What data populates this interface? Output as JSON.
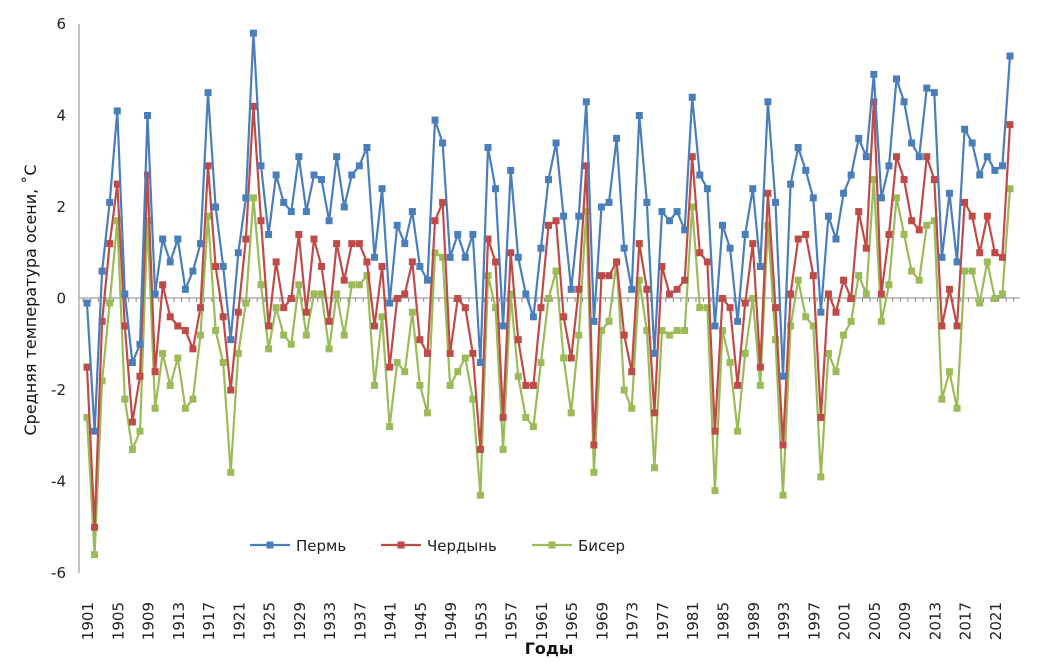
{
  "chart_data": {
    "type": "line",
    "title": "",
    "xlabel": "Годы",
    "ylabel": "Средняя температура осени, ˚С",
    "ylim": [
      -6,
      6
    ],
    "yticks": [
      -6,
      -4,
      -2,
      0,
      2,
      4,
      6
    ],
    "x": [
      1901,
      1902,
      1903,
      1904,
      1905,
      1906,
      1907,
      1908,
      1909,
      1910,
      1911,
      1912,
      1913,
      1914,
      1915,
      1916,
      1917,
      1918,
      1919,
      1920,
      1921,
      1922,
      1923,
      1924,
      1925,
      1926,
      1927,
      1928,
      1929,
      1930,
      1931,
      1932,
      1933,
      1934,
      1935,
      1936,
      1937,
      1938,
      1939,
      1940,
      1941,
      1942,
      1943,
      1944,
      1945,
      1946,
      1947,
      1948,
      1949,
      1950,
      1951,
      1952,
      1953,
      1954,
      1955,
      1956,
      1957,
      1958,
      1959,
      1960,
      1961,
      1962,
      1963,
      1964,
      1965,
      1966,
      1967,
      1968,
      1969,
      1970,
      1971,
      1972,
      1973,
      1974,
      1975,
      1976,
      1977,
      1978,
      1979,
      1980,
      1981,
      1982,
      1983,
      1984,
      1985,
      1986,
      1987,
      1988,
      1989,
      1990,
      1991,
      1992,
      1993,
      1994,
      1995,
      1996,
      1997,
      1998,
      1999,
      2000,
      2001,
      2002,
      2003,
      2004,
      2005,
      2006,
      2007,
      2008,
      2009,
      2010,
      2011,
      2012,
      2013,
      2014,
      2015,
      2016,
      2017,
      2018,
      2019,
      2020,
      2021,
      2022,
      2023
    ],
    "xticks": [
      "1901",
      "1905",
      "1909",
      "1913",
      "1917",
      "1921",
      "1925",
      "1929",
      "1933",
      "1937",
      "1941",
      "1945",
      "1949",
      "1953",
      "1957",
      "1961",
      "1965",
      "1969",
      "1973",
      "1977",
      "1981",
      "1985",
      "1989",
      "1993",
      "1997",
      "2001",
      "2005",
      "2009",
      "2013",
      "2017",
      "2021"
    ],
    "series": [
      {
        "name": "Пермь",
        "color": "#4a7ebb",
        "marker": "square",
        "values": [
          -0.1,
          -2.9,
          0.6,
          2.1,
          4.1,
          0.1,
          -1.4,
          -1.0,
          4.0,
          0.1,
          1.3,
          0.8,
          1.3,
          0.2,
          0.6,
          1.2,
          4.5,
          2.0,
          0.7,
          -0.9,
          1.0,
          2.2,
          5.8,
          2.9,
          1.4,
          2.7,
          2.1,
          1.9,
          3.1,
          1.9,
          2.7,
          2.6,
          1.7,
          3.1,
          2.0,
          2.7,
          2.9,
          3.3,
          0.9,
          2.4,
          -0.1,
          1.6,
          1.2,
          1.9,
          0.7,
          0.4,
          3.9,
          3.4,
          0.9,
          1.4,
          0.9,
          1.4,
          -1.4,
          3.3,
          2.4,
          -0.6,
          2.8,
          0.9,
          0.1,
          -0.4,
          1.1,
          2.6,
          3.4,
          1.8,
          0.2,
          1.8,
          4.3,
          -0.5,
          2.0,
          2.1,
          3.5,
          1.1,
          0.2,
          4.0,
          2.1,
          -1.2,
          1.9,
          1.7,
          1.9,
          1.5,
          4.4,
          2.7,
          2.4,
          -0.6,
          1.6,
          1.1,
          -0.5,
          1.4,
          2.4,
          0.7,
          4.3,
          2.1,
          -1.7,
          2.5,
          3.3,
          2.8,
          2.2,
          -0.3,
          1.8,
          1.3,
          2.3,
          2.7,
          3.5,
          3.1,
          4.9,
          2.2,
          2.9,
          4.8,
          4.3,
          3.4,
          3.1,
          4.6,
          4.5,
          0.9,
          2.3,
          0.8,
          3.7,
          3.4,
          2.7,
          3.1,
          2.8,
          2.9,
          5.3
        ]
      },
      {
        "name": "Чердынь",
        "color": "#be4b48",
        "marker": "square",
        "values": [
          -1.5,
          -5.0,
          -0.5,
          1.2,
          2.5,
          -0.6,
          -2.7,
          -1.7,
          2.7,
          -1.6,
          0.3,
          -0.4,
          -0.6,
          -0.7,
          -1.1,
          -0.2,
          2.9,
          0.7,
          -0.4,
          -2.0,
          -0.3,
          1.3,
          4.2,
          1.7,
          -0.6,
          0.8,
          -0.2,
          0.0,
          1.4,
          -0.3,
          1.3,
          0.7,
          -0.5,
          1.2,
          0.4,
          1.2,
          1.2,
          0.8,
          -0.6,
          0.7,
          -1.5,
          0.0,
          0.1,
          0.8,
          -0.9,
          -1.2,
          1.7,
          2.1,
          -1.2,
          0.0,
          -0.2,
          -1.2,
          -3.3,
          1.3,
          0.8,
          -2.6,
          1.0,
          -0.9,
          -1.9,
          -1.9,
          -0.2,
          1.6,
          1.7,
          -0.4,
          -1.3,
          0.2,
          2.9,
          -3.2,
          0.5,
          0.5,
          0.8,
          -0.8,
          -1.6,
          1.2,
          0.2,
          -2.5,
          0.7,
          0.1,
          0.2,
          0.4,
          3.1,
          1.0,
          0.8,
          -2.9,
          0.0,
          -0.2,
          -1.9,
          -0.1,
          1.2,
          -1.5,
          2.3,
          -0.2,
          -3.2,
          0.1,
          1.3,
          1.4,
          0.5,
          -2.6,
          0.1,
          -0.3,
          0.4,
          0.0,
          1.9,
          1.1,
          4.3,
          0.1,
          1.4,
          3.1,
          2.6,
          1.7,
          1.5,
          3.1,
          2.6,
          -0.6,
          0.2,
          -0.6,
          2.1,
          1.8,
          1.0,
          1.8,
          1.0,
          0.9,
          3.8
        ]
      },
      {
        "name": "Бисер",
        "color": "#9bbb59",
        "marker": "square",
        "values": [
          -2.6,
          -5.6,
          -1.8,
          -0.1,
          1.7,
          -2.2,
          -3.3,
          -2.9,
          1.7,
          -2.4,
          -1.2,
          -1.9,
          -1.3,
          -2.4,
          -2.2,
          -0.8,
          1.8,
          -0.7,
          -1.4,
          -3.8,
          -1.2,
          -0.1,
          2.2,
          0.3,
          -1.1,
          -0.2,
          -0.8,
          -1.0,
          0.3,
          -0.8,
          0.1,
          0.1,
          -1.1,
          0.1,
          -0.8,
          0.3,
          0.3,
          0.5,
          -1.9,
          -0.4,
          -2.8,
          -1.4,
          -1.6,
          -0.3,
          -1.9,
          -2.5,
          1.0,
          0.9,
          -1.9,
          -1.6,
          -1.3,
          -2.2,
          -4.3,
          0.5,
          -0.2,
          -3.3,
          0.1,
          -1.7,
          -2.6,
          -2.8,
          -1.4,
          0.0,
          0.6,
          -1.3,
          -2.5,
          -0.8,
          1.9,
          -3.8,
          -0.7,
          -0.5,
          0.8,
          -2.0,
          -2.4,
          0.4,
          -0.7,
          -3.7,
          -0.7,
          -0.8,
          -0.7,
          -0.7,
          2.0,
          -0.2,
          -0.2,
          -4.2,
          -0.7,
          -1.4,
          -2.9,
          -1.2,
          0.0,
          -1.9,
          1.6,
          -0.9,
          -4.3,
          -0.6,
          0.4,
          -0.4,
          -0.6,
          -3.9,
          -1.2,
          -1.6,
          -0.8,
          -0.5,
          0.5,
          0.1,
          2.6,
          -0.5,
          0.3,
          2.2,
          1.4,
          0.6,
          0.4,
          1.6,
          1.7,
          -2.2,
          -1.6,
          -2.4,
          0.6,
          0.6,
          -0.1,
          0.8,
          0.0,
          0.1,
          2.4
        ]
      }
    ],
    "grid": false,
    "legend": "bottom-center"
  }
}
